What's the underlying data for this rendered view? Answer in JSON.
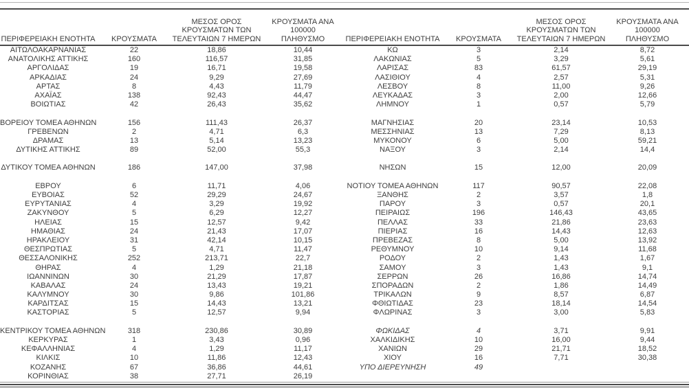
{
  "document": {
    "columns": [
      "ΠΕΡΙΦΕΡΕΙΑΚΗ ΕΝΟΤΗΤΑ",
      "ΚΡΟΥΣΜΑΤΑ",
      "ΜΕΣΟΣ ΟΡΟΣ\nΚΡΟΥΣΜΑΤΩΝ ΤΩΝ\nΤΕΛΕΥΤΑΙΩΝ 7 ΗΜΕΡΩΝ",
      "ΚΡΟΥΣΜΑΤΑ ΑΝΑ 100000\nΠΛΗΘΥΣΜΟ"
    ],
    "left_table": {
      "rows": [
        [
          "ΑΙΤΩΛΟΑΚΑΡΝΑΝΙΑΣ",
          "22",
          "18,86",
          "10,44"
        ],
        [
          "ΑΝΑΤΟΛΙΚΗΣ ΑΤΤΙΚΗΣ",
          "160",
          "116,57",
          "31,85"
        ],
        [
          "ΑΡΓΟΛΙΔΑΣ",
          "19",
          "16,71",
          "19,58"
        ],
        [
          "ΑΡΚΑΔΙΑΣ",
          "24",
          "9,29",
          "27,69"
        ],
        [
          "ΑΡΤΑΣ",
          "8",
          "4,43",
          "11,79"
        ],
        [
          "ΑΧΑΪΑΣ",
          "138",
          "92,43",
          "44,47"
        ],
        [
          "ΒΟΙΩΤΙΑΣ",
          "42",
          "26,43",
          "35,62"
        ],
        [
          "",
          "",
          "",
          ""
        ],
        [
          "ΒΟΡΕΙΟΥ ΤΟΜΕΑ ΑΘΗΝΩΝ",
          "156",
          "111,43",
          "26,37"
        ],
        [
          "ΓΡΕΒΕΝΩΝ",
          "2",
          "4,71",
          "6,3"
        ],
        [
          "ΔΡΑΜΑΣ",
          "13",
          "5,14",
          "13,23"
        ],
        [
          "ΔΥΤΙΚΗΣ ΑΤΤΙΚΗΣ",
          "89",
          "52,00",
          "55,3"
        ],
        [
          "",
          "",
          "",
          ""
        ],
        [
          "ΔΥΤΙΚΟΥ ΤΟΜΕΑ ΑΘΗΝΩΝ",
          "186",
          "147,00",
          "37,98"
        ],
        [
          "",
          "",
          "",
          ""
        ],
        [
          "ΕΒΡΟΥ",
          "6",
          "11,71",
          "4,06"
        ],
        [
          "ΕΥΒΟΙΑΣ",
          "52",
          "29,29",
          "24,67"
        ],
        [
          "ΕΥΡΥΤΑΝΙΑΣ",
          "4",
          "3,29",
          "19,92"
        ],
        [
          "ΖΑΚΥΝΘΟΥ",
          "5",
          "6,29",
          "12,27"
        ],
        [
          "ΗΛΕΙΑΣ",
          "15",
          "12,57",
          "9,42"
        ],
        [
          "ΗΜΑΘΙΑΣ",
          "24",
          "21,43",
          "17,07"
        ],
        [
          "ΗΡΑΚΛΕΙΟΥ",
          "31",
          "42,14",
          "10,15"
        ],
        [
          "ΘΕΣΠΡΩΤΙΑΣ",
          "5",
          "4,71",
          "11,47"
        ],
        [
          "ΘΕΣΣΑΛΟΝΙΚΗΣ",
          "252",
          "213,71",
          "22,7"
        ],
        [
          "ΘΗΡΑΣ",
          "4",
          "1,29",
          "21,18"
        ],
        [
          "ΙΩΑΝΝΙΝΩΝ",
          "30",
          "21,29",
          "17,87"
        ],
        [
          "ΚΑΒΑΛΑΣ",
          "24",
          "13,43",
          "19,21"
        ],
        [
          "ΚΑΛΥΜΝΟΥ",
          "30",
          "9,86",
          "101,86"
        ],
        [
          "ΚΑΡΔΙΤΣΑΣ",
          "15",
          "14,43",
          "13,21"
        ],
        [
          "ΚΑΣΤΟΡΙΑΣ",
          "5",
          "12,57",
          "9,94"
        ],
        [
          "",
          "",
          "",
          ""
        ],
        [
          "ΚΕΝΤΡΙΚΟΥ ΤΟΜΕΑ ΑΘΗΝΩΝ",
          "318",
          "230,86",
          "30,89"
        ],
        [
          "ΚΕΡΚΥΡΑΣ",
          "1",
          "3,43",
          "0,96"
        ],
        [
          "ΚΕΦΑΛΛΗΝΙΑΣ",
          "4",
          "1,29",
          "11,17"
        ],
        [
          "ΚΙΛΚΙΣ",
          "10",
          "11,86",
          "12,43"
        ],
        [
          "ΚΟΖΑΝΗΣ",
          "67",
          "36,86",
          "44,61"
        ],
        [
          "ΚΟΡΙΝΘΙΑΣ",
          "38",
          "27,71",
          "26,19"
        ]
      ]
    },
    "right_table": {
      "rows": [
        [
          "ΚΩ",
          "3",
          "2,14",
          "8,72"
        ],
        [
          "ΛΑΚΩΝΙΑΣ",
          "5",
          "3,29",
          "5,61"
        ],
        [
          "ΛΑΡΙΣΑΣ",
          "83",
          "61,57",
          "29,19"
        ],
        [
          "ΛΑΣΙΘΙΟΥ",
          "4",
          "2,57",
          "5,31"
        ],
        [
          "ΛΕΣΒΟΥ",
          "8",
          "11,00",
          "9,26"
        ],
        [
          "ΛΕΥΚΑΔΑΣ",
          "3",
          "2,00",
          "12,66"
        ],
        [
          "ΛΗΜΝΟΥ",
          "1",
          "0,57",
          "5,79"
        ],
        [
          "",
          "",
          "",
          ""
        ],
        [
          "ΜΑΓΝΗΣΙΑΣ",
          "20",
          "23,14",
          "10,53"
        ],
        [
          "ΜΕΣΣΗΝΙΑΣ",
          "13",
          "7,29",
          "8,13"
        ],
        [
          "ΜΥΚΟΝΟΥ",
          "6",
          "5,00",
          "59,21"
        ],
        [
          "ΝΑΞΟΥ",
          "3",
          "2,14",
          "14,4"
        ],
        [
          "",
          "",
          "",
          ""
        ],
        [
          "ΝΗΣΩΝ",
          "15",
          "12,00",
          "20,09"
        ],
        [
          "",
          "",
          "",
          ""
        ],
        [
          "ΝΟΤΙΟΥ ΤΟΜΕΑ ΑΘΗΝΩΝ",
          "117",
          "90,57",
          "22,08"
        ],
        [
          "ΞΑΝΘΗΣ",
          "2",
          "3,57",
          "1,8"
        ],
        [
          "ΠΑΡΟΥ",
          "3",
          "0,57",
          "20,1"
        ],
        [
          "ΠΕΙΡΑΙΩΣ",
          "196",
          "146,43",
          "43,65"
        ],
        [
          "ΠΕΛΛΑΣ",
          "33",
          "21,86",
          "23,63"
        ],
        [
          "ΠΙΕΡΙΑΣ",
          "16",
          "14,43",
          "12,63"
        ],
        [
          "ΠΡΕΒΕΖΑΣ",
          "8",
          "5,00",
          "13,92"
        ],
        [
          "ΡΕΘΥΜΝΟΥ",
          "10",
          "9,14",
          "11,68"
        ],
        [
          "ΡΟΔΟΥ",
          "2",
          "1,43",
          "1,67"
        ],
        [
          "ΣΑΜΟΥ",
          "3",
          "1,43",
          "9,1"
        ],
        [
          "ΣΕΡΡΩΝ",
          "26",
          "16,86",
          "14,74"
        ],
        [
          "ΣΠΟΡΑΔΩΝ",
          "2",
          "1,86",
          "14,49"
        ],
        [
          "ΤΡΙΚΑΛΩΝ",
          "9",
          "8,57",
          "6,87"
        ],
        [
          "ΦΘΙΩΤΙΔΑΣ",
          "23",
          "18,14",
          "14,54"
        ],
        [
          "ΦΛΩΡΙΝΑΣ",
          "3",
          "3,00",
          "5,83"
        ],
        [
          "",
          "",
          "",
          ""
        ],
        [
          "ΦΩΚΙΔΑΣ",
          "4",
          "3,71",
          "9,91",
          true
        ],
        [
          "ΧΑΛΚΙΔΙΚΗΣ",
          "10",
          "16,00",
          "9,44"
        ],
        [
          "ΧΑΝΙΩΝ",
          "29",
          "21,71",
          "18,52"
        ],
        [
          "ΧΙΟΥ",
          "16",
          "7,71",
          "30,38"
        ],
        [
          "ΥΠΟ ΔΙΕΡΕΥΝΗΣΗ",
          "49",
          "",
          "",
          true
        ],
        [
          "",
          "",
          "",
          ""
        ]
      ]
    }
  }
}
